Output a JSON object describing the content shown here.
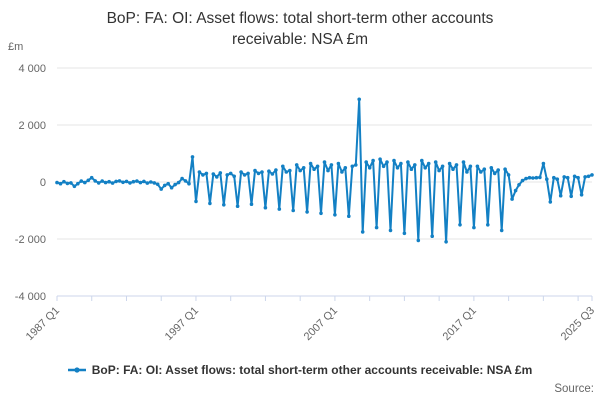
{
  "title": "BoP: FA: OI: Asset flows: total short-term other accounts receivable: NSA £m",
  "y_axis_unit": "£m",
  "source_label": "Source:",
  "legend": {
    "label": "BoP: FA: OI: Asset flows: total short-term other accounts receivable: NSA £m"
  },
  "colors": {
    "line": "#1380c4",
    "grid": "#e6e6e6",
    "axis": "#ccd6eb",
    "tick_label": "#666666",
    "title": "#333333",
    "legend_text": "#333333",
    "source": "#666666",
    "background": "#ffffff"
  },
  "chart_data": {
    "type": "line",
    "title": "BoP: FA: OI: Asset flows: total short-term other accounts receivable: NSA £m",
    "xlabel": "",
    "ylabel": "£m",
    "ylim": [
      -4000,
      4000
    ],
    "grid": "horizontal",
    "legend_position": "bottom-center",
    "x_unit": "quarter",
    "x_start": "1987 Q1",
    "x_end": "2025 Q3",
    "points_count": 155,
    "y_ticks": [
      {
        "value": 4000,
        "label": "4 000"
      },
      {
        "value": 2000,
        "label": "2 000"
      },
      {
        "value": 0,
        "label": "0"
      },
      {
        "value": -2000,
        "label": "-2 000"
      },
      {
        "value": -4000,
        "label": "-4 000"
      }
    ],
    "x_major_ticks": [
      {
        "label": "1987 Q1",
        "index": 0
      },
      {
        "label": "1997 Q1",
        "index": 40
      },
      {
        "label": "2007 Q1",
        "index": 80
      },
      {
        "label": "2017 Q1",
        "index": 120
      },
      {
        "label": "2025 Q3",
        "index": 154
      }
    ],
    "minor_tick_every_quarters": 10,
    "series": [
      {
        "name": "BoP: FA: OI: Asset flows: total short-term other accounts receivable: NSA £m",
        "color": "#1380c4",
        "values": [
          -20,
          -60,
          10,
          -50,
          -30,
          -150,
          -60,
          30,
          -20,
          60,
          150,
          40,
          -30,
          30,
          -20,
          10,
          -40,
          20,
          40,
          -10,
          20,
          -30,
          10,
          30,
          -20,
          20,
          -40,
          0,
          -30,
          -80,
          -250,
          -120,
          -60,
          -200,
          -90,
          -20,
          120,
          40,
          -60,
          880,
          -680,
          350,
          250,
          300,
          -750,
          280,
          180,
          320,
          -800,
          250,
          300,
          200,
          -850,
          350,
          250,
          300,
          -780,
          400,
          300,
          350,
          -900,
          380,
          280,
          420,
          -950,
          550,
          350,
          400,
          -1000,
          600,
          400,
          500,
          -1050,
          650,
          450,
          550,
          -1100,
          700,
          400,
          600,
          -1150,
          650,
          350,
          500,
          -1200,
          550,
          600,
          2900,
          -1750,
          700,
          500,
          750,
          -1600,
          800,
          550,
          700,
          -1700,
          750,
          500,
          650,
          -1800,
          700,
          450,
          600,
          -2050,
          750,
          500,
          650,
          -1900,
          700,
          400,
          550,
          -2100,
          650,
          450,
          600,
          -1500,
          700,
          350,
          550,
          -1600,
          550,
          350,
          450,
          -1500,
          500,
          300,
          420,
          -1700,
          450,
          250,
          -600,
          -300,
          -100,
          50,
          120,
          150,
          140,
          150,
          160,
          650,
          100,
          -700,
          150,
          100,
          -480,
          180,
          150,
          -500,
          200,
          150,
          -450,
          180,
          200,
          250
        ]
      }
    ]
  }
}
